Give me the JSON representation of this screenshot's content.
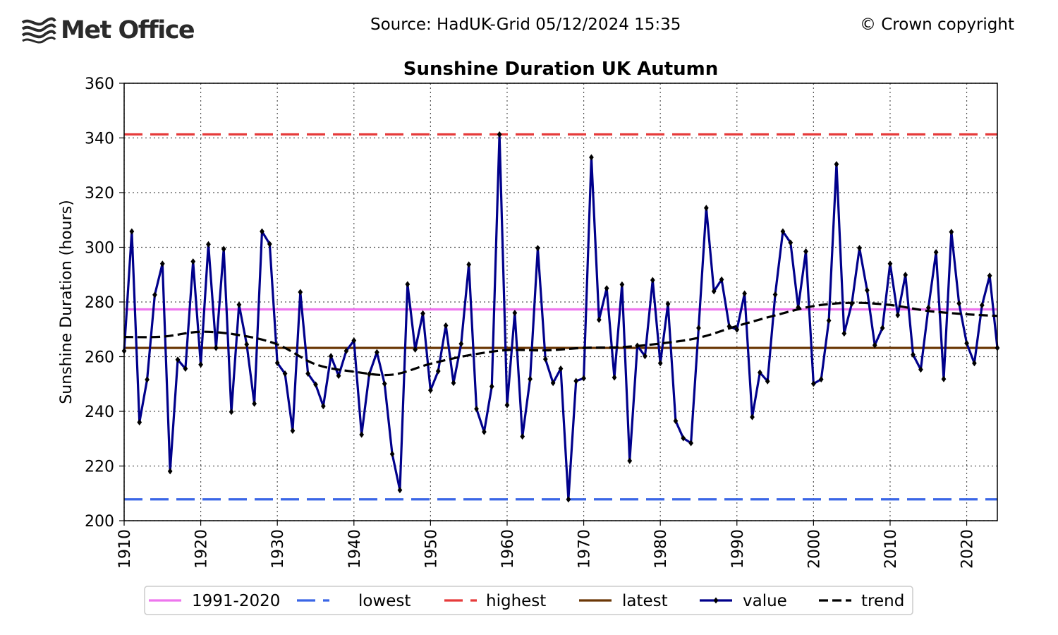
{
  "header": {
    "logo_text": "Met Office",
    "source": "Source: HadUK-Grid 05/12/2024 15:35",
    "copyright": "© Crown copyright"
  },
  "chart_data": {
    "type": "line",
    "title": "Sunshine Duration UK Autumn",
    "xlabel": "",
    "ylabel": "Sunshine Duration (hours)",
    "xlim": [
      1910,
      2024
    ],
    "ylim": [
      200,
      360
    ],
    "x_ticks": [
      1910,
      1920,
      1930,
      1940,
      1950,
      1960,
      1970,
      1980,
      1990,
      2000,
      2010,
      2020
    ],
    "y_ticks": [
      200,
      220,
      240,
      260,
      280,
      300,
      320,
      340,
      360
    ],
    "grid": true,
    "legend_position": "bottom",
    "reference_lines": [
      {
        "name": "1991-2020",
        "value": 277.3,
        "color": "#ee76ee",
        "style": "solid"
      },
      {
        "name": "lowest",
        "value": 207.8,
        "color": "#3a66e6",
        "style": "dashed"
      },
      {
        "name": "highest",
        "value": 341.3,
        "color": "#e63b3b",
        "style": "dashed"
      },
      {
        "name": "latest",
        "value": 263.2,
        "color": "#6b3806",
        "style": "solid"
      }
    ],
    "series": [
      {
        "name": "value",
        "color": "#00008b",
        "x": [
          1910,
          1911,
          1912,
          1913,
          1914,
          1915,
          1916,
          1917,
          1918,
          1919,
          1920,
          1921,
          1922,
          1923,
          1924,
          1925,
          1926,
          1927,
          1928,
          1929,
          1930,
          1931,
          1932,
          1933,
          1934,
          1935,
          1936,
          1937,
          1938,
          1939,
          1940,
          1941,
          1942,
          1943,
          1944,
          1945,
          1946,
          1947,
          1948,
          1949,
          1950,
          1951,
          1952,
          1953,
          1954,
          1955,
          1956,
          1957,
          1958,
          1959,
          1960,
          1961,
          1962,
          1963,
          1964,
          1965,
          1966,
          1967,
          1968,
          1969,
          1970,
          1971,
          1972,
          1973,
          1974,
          1975,
          1976,
          1977,
          1978,
          1979,
          1980,
          1981,
          1982,
          1983,
          1984,
          1985,
          1986,
          1987,
          1988,
          1989,
          1990,
          1991,
          1992,
          1993,
          1994,
          1995,
          1996,
          1997,
          1998,
          1999,
          2000,
          2001,
          2002,
          2003,
          2004,
          2005,
          2006,
          2007,
          2008,
          2009,
          2010,
          2011,
          2012,
          2013,
          2014,
          2015,
          2016,
          2017,
          2018,
          2019,
          2020,
          2021,
          2022,
          2023,
          2024
        ],
        "values": [
          262.1,
          305.8,
          236.0,
          251.6,
          282.6,
          294.0,
          218.1,
          258.9,
          255.6,
          294.8,
          257.1,
          301.1,
          263.2,
          299.4,
          239.8,
          279.0,
          264.5,
          242.8,
          305.8,
          301.2,
          257.7,
          253.8,
          232.9,
          283.6,
          253.8,
          249.8,
          241.9,
          260.2,
          253.0,
          262.1,
          265.9,
          231.5,
          253.6,
          261.6,
          250.1,
          224.4,
          211.2,
          286.5,
          262.6,
          275.8,
          247.7,
          254.7,
          271.4,
          250.4,
          264.7,
          293.7,
          240.9,
          232.5,
          249.1,
          341.3,
          242.3,
          276.0,
          230.8,
          251.8,
          299.7,
          259.1,
          250.4,
          255.6,
          207.8,
          251.1,
          252.1,
          332.9,
          273.5,
          285.0,
          252.4,
          286.4,
          221.9,
          264.0,
          260.2,
          288.0,
          257.6,
          279.3,
          236.5,
          230.2,
          228.4,
          270.5,
          314.4,
          283.9,
          288.2,
          271.1,
          269.9,
          283.1,
          237.9,
          254.2,
          251.0,
          282.7,
          305.8,
          301.7,
          278.0,
          298.5,
          250.1,
          251.7,
          273.2,
          330.4,
          268.5,
          279.4,
          299.7,
          284.3,
          264.2,
          270.5,
          294.0,
          275.2,
          289.9,
          260.7,
          255.3,
          277.9,
          298.2,
          251.8,
          305.6,
          279.5,
          264.9,
          257.6,
          278.8,
          289.6,
          263.2
        ]
      },
      {
        "name": "trend",
        "color": "#000000",
        "x": [
          1910,
          1915,
          1920,
          1925,
          1930,
          1935,
          1940,
          1945,
          1950,
          1955,
          1960,
          1965,
          1970,
          1975,
          1980,
          1985,
          1990,
          1995,
          2000,
          2005,
          2010,
          2015,
          2020,
          2024
        ],
        "values": [
          267.2,
          267.3,
          269.1,
          267.9,
          264.5,
          257.2,
          254.5,
          253.4,
          257.4,
          260.5,
          262.4,
          262.3,
          263.2,
          263.5,
          264.8,
          266.9,
          271.2,
          275.1,
          278.5,
          279.7,
          278.9,
          276.7,
          275.5,
          274.9
        ]
      }
    ]
  }
}
